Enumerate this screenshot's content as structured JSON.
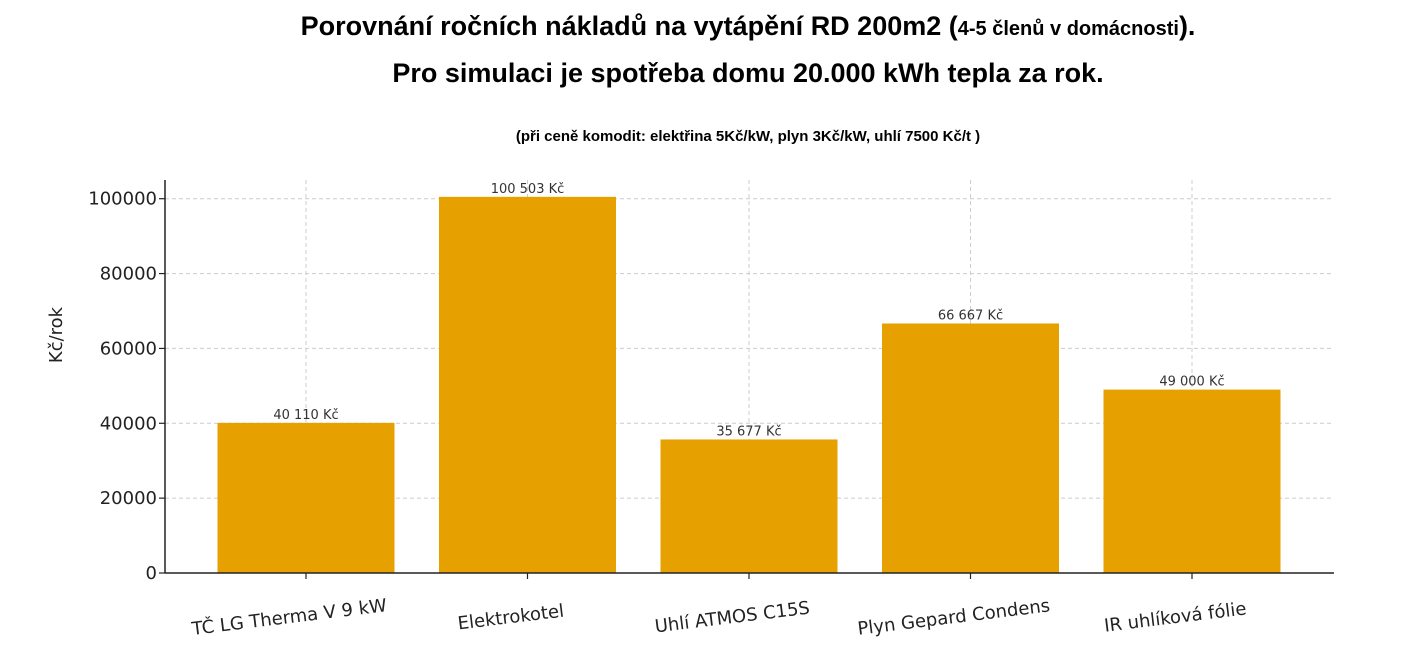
{
  "chart_data": {
    "type": "bar",
    "title_line1_main": "Porovnání ročních nákladů na vytápění RD 200m2 (",
    "title_line1_small": "4-5 členů v domácnosti",
    "title_line1_end": ").",
    "title_line2": "Pro simulaci je spotřeba domu 20.000 kWh tepla za rok.",
    "subtitle": "(při ceně komodit: elektřina 5Kč/kW, plyn 3Kč/kW, uhlí 7500 Kč/t  )",
    "categories": [
      "TČ LG Therma V 9 kW",
      "Elektrokotel",
      "Uhlí ATMOS C15S",
      "Plyn Gepard Condens",
      "IR uhlíková fólie"
    ],
    "values": [
      40110,
      100503,
      35677,
      66667,
      49000
    ],
    "data_labels": [
      "40 110 Kč",
      "100 503 Kč",
      "35 677 Kč",
      "66 667 Kč",
      "49 000 Kč"
    ],
    "ylabel": "Kč/rok",
    "xlabel": "",
    "ylim": [
      0,
      105000
    ],
    "yticks": [
      0,
      20000,
      40000,
      60000,
      80000,
      100000
    ],
    "grid": true,
    "bar_color": "#E6A100"
  }
}
